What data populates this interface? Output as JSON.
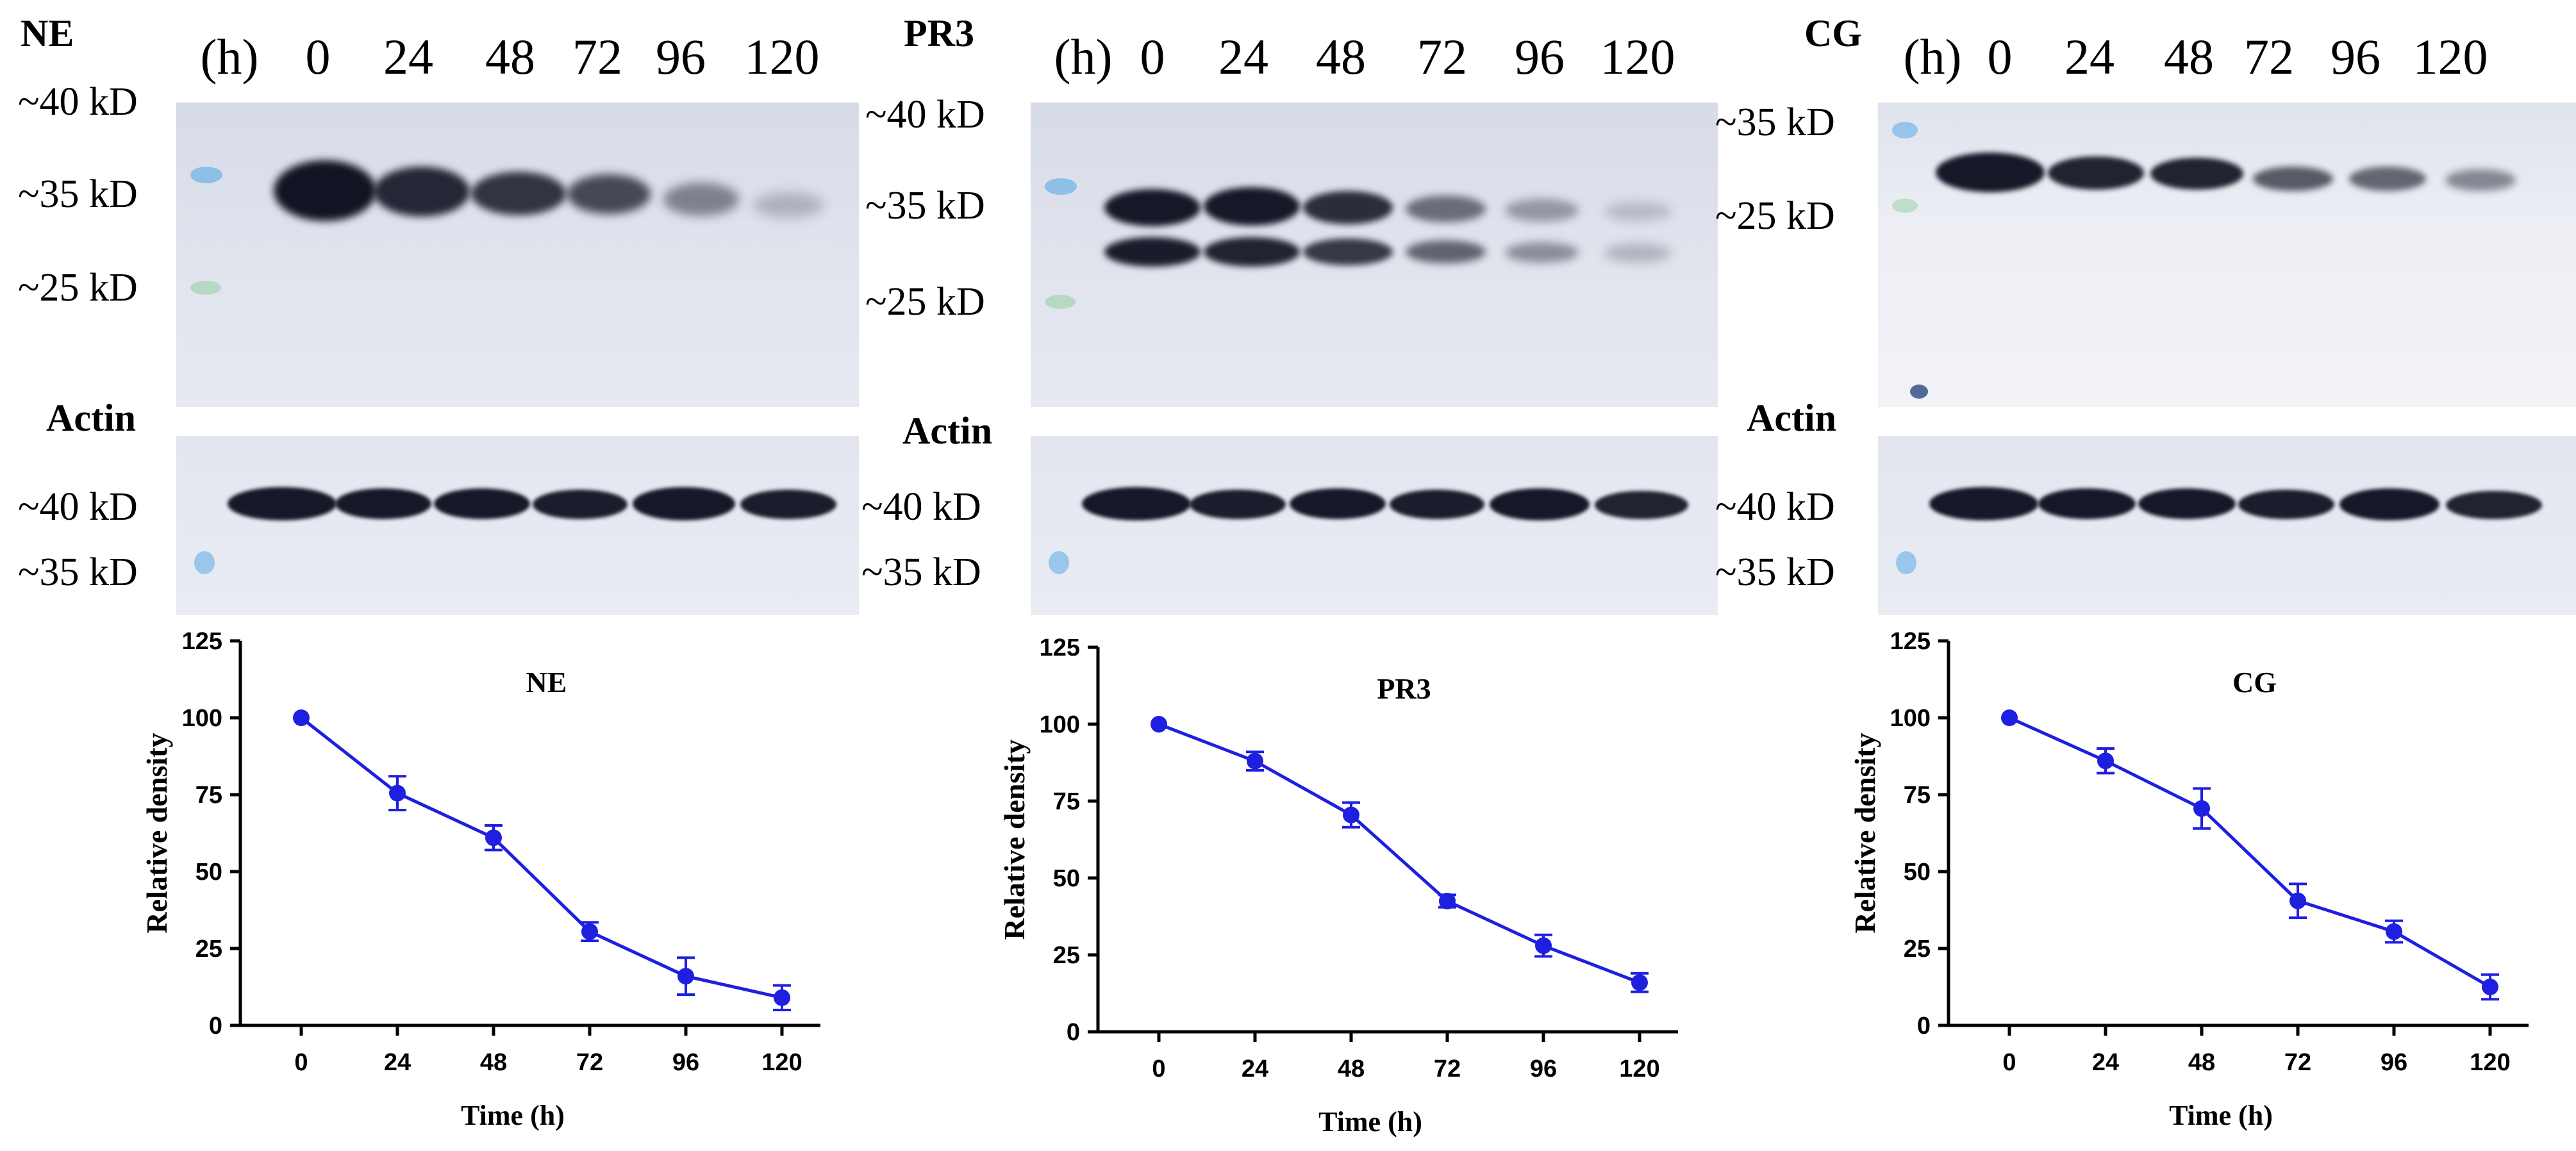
{
  "blot_panels": [
    {
      "name": "NE",
      "lane_unit": "(h)",
      "lanes": [
        "0",
        "24",
        "48",
        "72",
        "96",
        "120"
      ],
      "markers": [
        "~40 kD",
        "~35 kD",
        "~25 kD"
      ],
      "loading_control": "Actin",
      "actin_markers": [
        "~40 kD",
        "~35 kD"
      ]
    },
    {
      "name": "PR3",
      "lane_unit": "(h)",
      "lanes": [
        "0",
        "24",
        "48",
        "72",
        "96",
        "120"
      ],
      "markers": [
        "~40 kD",
        "~35 kD",
        "~25 kD"
      ],
      "loading_control": "Actin",
      "actin_markers": [
        "~40 kD",
        "~35 kD"
      ]
    },
    {
      "name": "CG",
      "lane_unit": "(h)",
      "lanes": [
        "0",
        "24",
        "48",
        "72",
        "96",
        "120"
      ],
      "markers": [
        "~35 kD",
        "~25 kD"
      ],
      "loading_control": "Actin",
      "actin_markers": [
        "~40 kD",
        "~35 kD"
      ]
    }
  ],
  "colors": {
    "series": "#1f1fe0",
    "axis": "#000000",
    "band": "#0b0d1c"
  },
  "chart_data": [
    {
      "type": "line",
      "title": "NE",
      "xlabel": "Time (h)",
      "ylabel": "Relative density",
      "x": [
        0,
        24,
        48,
        72,
        96,
        120
      ],
      "x_tick_labels": [
        "0",
        "24",
        "48",
        "72",
        "96",
        "120"
      ],
      "y_tick_labels": [
        "0",
        "25",
        "50",
        "75",
        "100",
        "125"
      ],
      "ylim": [
        0,
        125
      ],
      "series": [
        {
          "values": [
            100,
            75.5,
            61,
            30.5,
            16,
            9
          ],
          "errors": [
            0,
            5.5,
            4,
            3,
            6,
            4
          ]
        }
      ]
    },
    {
      "type": "line",
      "title": "PR3",
      "xlabel": "Time (h)",
      "ylabel": "Relative density",
      "x": [
        0,
        24,
        48,
        72,
        96,
        120
      ],
      "x_tick_labels": [
        "0",
        "24",
        "48",
        "72",
        "96",
        "120"
      ],
      "y_tick_labels": [
        "0",
        "25",
        "50",
        "75",
        "100",
        "125"
      ],
      "ylim": [
        0,
        125
      ],
      "series": [
        {
          "values": [
            100,
            88,
            70.5,
            42.5,
            28,
            16
          ],
          "errors": [
            0,
            3,
            4,
            2,
            3.5,
            3
          ]
        }
      ]
    },
    {
      "type": "line",
      "title": "CG",
      "xlabel": "Time (h)",
      "ylabel": "Relative density",
      "x": [
        0,
        24,
        48,
        72,
        96,
        120
      ],
      "x_tick_labels": [
        "0",
        "24",
        "48",
        "72",
        "96",
        "120"
      ],
      "y_tick_labels": [
        "0",
        "25",
        "50",
        "75",
        "100",
        "125"
      ],
      "ylim": [
        0,
        125
      ],
      "series": [
        {
          "values": [
            100,
            86,
            70.5,
            40.5,
            30.5,
            12.5
          ],
          "errors": [
            0,
            4,
            6.5,
            5.5,
            3.5,
            4
          ]
        }
      ]
    }
  ]
}
